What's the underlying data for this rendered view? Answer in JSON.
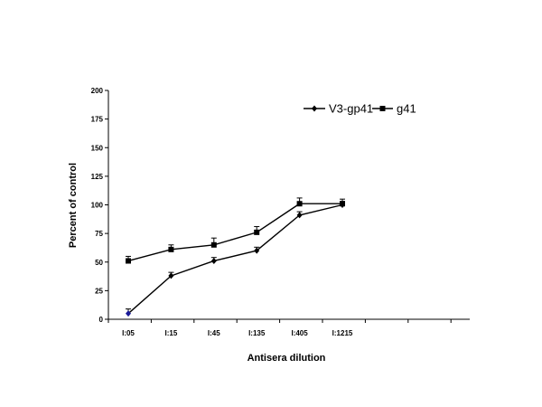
{
  "chart_data": {
    "type": "line",
    "title": "",
    "xlabel": "Antisera dilution",
    "ylabel": "Percent of control",
    "categories": [
      "I:05",
      "I:15",
      "I:45",
      "I:135",
      "I:405",
      "I:1215"
    ],
    "ylim": [
      0,
      200
    ],
    "yticks": [
      0,
      25,
      50,
      75,
      100,
      125,
      150,
      175,
      200
    ],
    "grid": false,
    "legend_position": "top-right",
    "series": [
      {
        "name": "V3-gp41",
        "marker": "diamond",
        "color": "#000000",
        "values": [
          5,
          38,
          51,
          60,
          91,
          100
        ],
        "error": [
          4,
          3,
          3,
          3,
          3,
          3
        ]
      },
      {
        "name": "g41",
        "marker": "square",
        "color": "#000000",
        "values": [
          51,
          61,
          65,
          76,
          101,
          101
        ],
        "error": [
          4,
          4,
          6,
          5,
          5,
          4
        ]
      }
    ],
    "highlight_point_color": "#1a1a99"
  }
}
